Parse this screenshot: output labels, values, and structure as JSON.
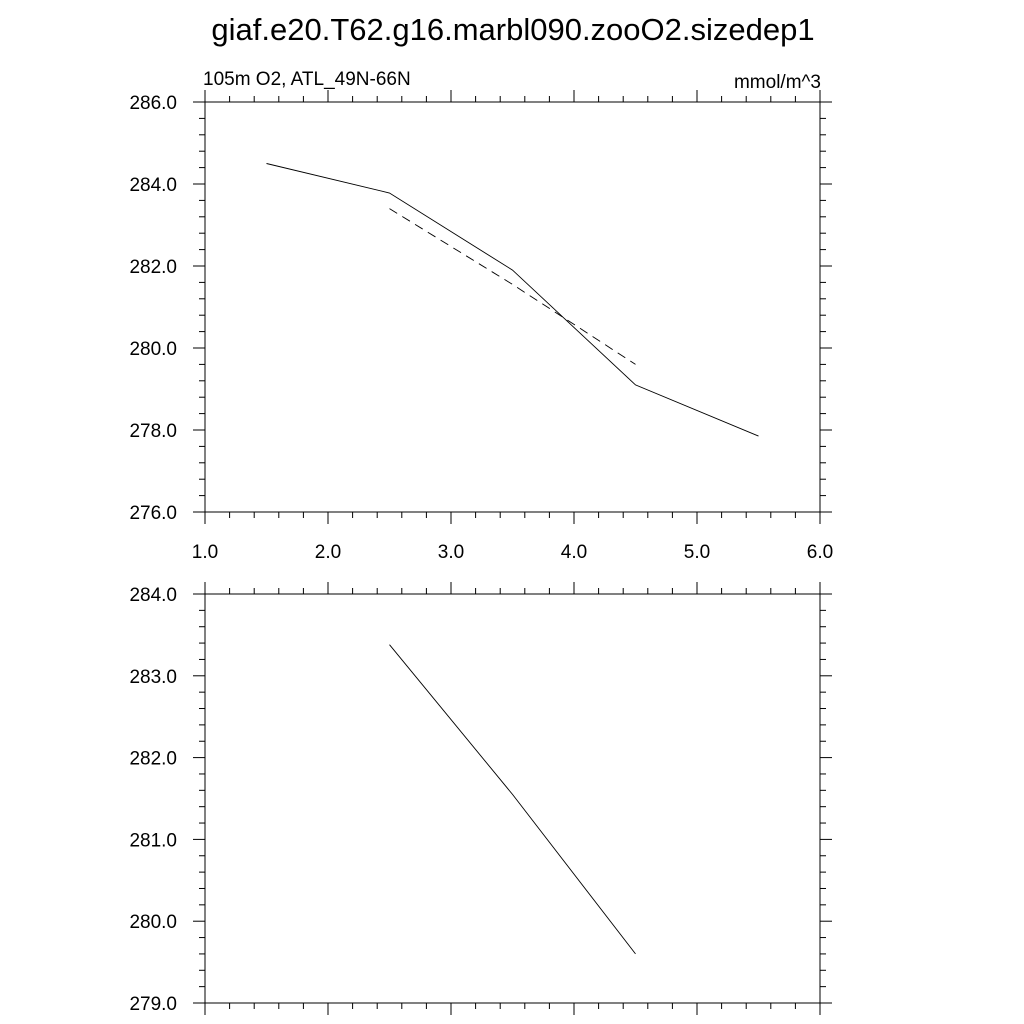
{
  "figure": {
    "title": "giaf.e20.T62.g16.marbl090.zooO2.sizedep1"
  },
  "chart_data": [
    {
      "type": "line",
      "left_label": "105m O2, ATL_49N-66N",
      "right_label": "mmol/m^3",
      "xlim": [
        1.0,
        6.0
      ],
      "ylim": [
        276.0,
        286.0
      ],
      "x_ticks": [
        "1.0",
        "2.0",
        "3.0",
        "4.0",
        "5.0",
        "6.0"
      ],
      "y_ticks": [
        "276.0",
        "278.0",
        "280.0",
        "282.0",
        "284.0",
        "286.0"
      ],
      "series": [
        {
          "style": "solid",
          "x": [
            1.5,
            2.5,
            3.5,
            4.5,
            5.5
          ],
          "y": [
            284.5,
            283.78,
            281.9,
            279.1,
            277.85
          ]
        },
        {
          "style": "dashed",
          "x": [
            2.5,
            3.5,
            4.5
          ],
          "y": [
            283.4,
            281.55,
            279.6
          ]
        }
      ]
    },
    {
      "type": "line",
      "xlim": [
        1.0,
        6.0
      ],
      "ylim": [
        279.0,
        284.0
      ],
      "x_ticks": [],
      "y_ticks": [
        "279.0",
        "280.0",
        "281.0",
        "282.0",
        "283.0",
        "284.0"
      ],
      "series": [
        {
          "style": "solid",
          "x": [
            2.5,
            3.5,
            4.5
          ],
          "y": [
            283.38,
            281.55,
            279.6
          ]
        }
      ]
    }
  ]
}
